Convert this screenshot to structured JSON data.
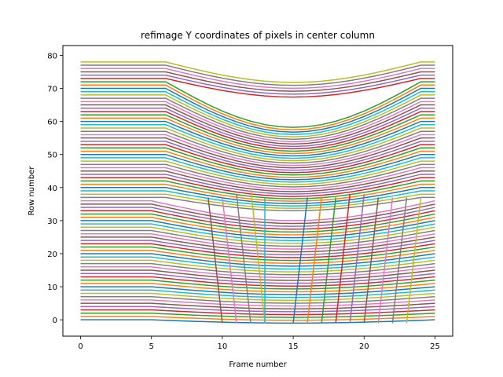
{
  "chart_data": {
    "type": "line",
    "title": "refimage Y coordinates of pixels in center column",
    "xlabel": "Frame number",
    "ylabel": "Row number",
    "xlim": [
      -1.25,
      26.25
    ],
    "ylim": [
      -4.95,
      82.95
    ],
    "xticks": [
      0,
      5,
      10,
      15,
      20,
      25
    ],
    "yticks": [
      0,
      10,
      20,
      30,
      40,
      50,
      60,
      70,
      80
    ],
    "grid": false,
    "legend": "none",
    "x": [
      0,
      1,
      2,
      3,
      4,
      5,
      6,
      7,
      8,
      9,
      10,
      11,
      12,
      13,
      14,
      15,
      16,
      17,
      18,
      19,
      20,
      21,
      22,
      23,
      24,
      25
    ],
    "palette": [
      "#1f77b4",
      "#ff7f0e",
      "#2ca02c",
      "#d62728",
      "#9467bd",
      "#8c564b",
      "#e377c2",
      "#7f7f7f",
      "#bcbd22",
      "#17becf"
    ],
    "series_count": 79,
    "vertical_segments": [
      {
        "x": [
          9,
          10
        ],
        "y": [
          37,
          -1
        ]
      },
      {
        "x": [
          10,
          11
        ],
        "y": [
          37,
          -1
        ]
      },
      {
        "x": [
          11,
          12
        ],
        "y": [
          38,
          -1
        ]
      },
      {
        "x": [
          12,
          13
        ],
        "y": [
          40,
          -1
        ]
      },
      {
        "x": [
          13,
          13
        ],
        "y": [
          37,
          -1
        ]
      },
      {
        "x": [
          15,
          16
        ],
        "y": [
          -1,
          37
        ]
      },
      {
        "x": [
          16,
          17
        ],
        "y": [
          -1,
          37
        ]
      },
      {
        "x": [
          17,
          18
        ],
        "y": [
          -1,
          37
        ]
      },
      {
        "x": [
          18,
          19
        ],
        "y": [
          -1,
          38
        ]
      },
      {
        "x": [
          19,
          20
        ],
        "y": [
          -1,
          38
        ]
      },
      {
        "x": [
          20,
          21
        ],
        "y": [
          -1,
          37
        ]
      },
      {
        "x": [
          21,
          22
        ],
        "y": [
          -1,
          37
        ]
      },
      {
        "x": [
          22,
          23
        ],
        "y": [
          -1,
          37
        ]
      },
      {
        "x": [
          23,
          24
        ],
        "y": [
          -1,
          37
        ]
      }
    ]
  }
}
